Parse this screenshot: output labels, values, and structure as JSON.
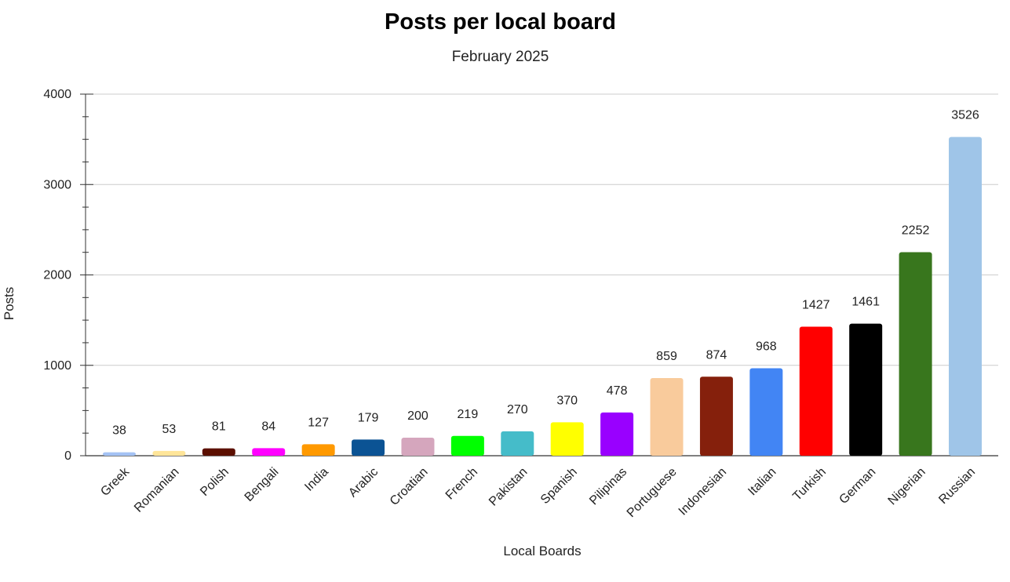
{
  "chart_data": {
    "type": "bar",
    "title": "Posts per local board",
    "subtitle": "February 2025",
    "xlabel": "Local Boards",
    "ylabel": "Posts",
    "ylim": [
      0,
      4000
    ],
    "yticks": [
      0,
      1000,
      2000,
      3000,
      4000
    ],
    "grid": true,
    "legend": "none",
    "categories": [
      "Greek",
      "Romanian",
      "Polish",
      "Bengali",
      "India",
      "Arabic",
      "Croatian",
      "French",
      "Pakistan",
      "Spanish",
      "Pilipinas",
      "Portuguese",
      "Indonesian",
      "Italian",
      "Turkish",
      "German",
      "Nigerian",
      "Russian"
    ],
    "values": [
      38,
      53,
      81,
      84,
      127,
      179,
      200,
      219,
      270,
      370,
      478,
      859,
      874,
      968,
      1427,
      1461,
      2252,
      3526
    ],
    "colors": [
      "#a4c2f4",
      "#ffe599",
      "#5b0f00",
      "#ff00ff",
      "#ff9900",
      "#0b5394",
      "#d5a6bd",
      "#00ff00",
      "#45bcc9",
      "#ffff00",
      "#9900ff",
      "#f9cb9c",
      "#85200c",
      "#4285f4",
      "#ff0000",
      "#000000",
      "#38761d",
      "#9fc5e8"
    ]
  }
}
